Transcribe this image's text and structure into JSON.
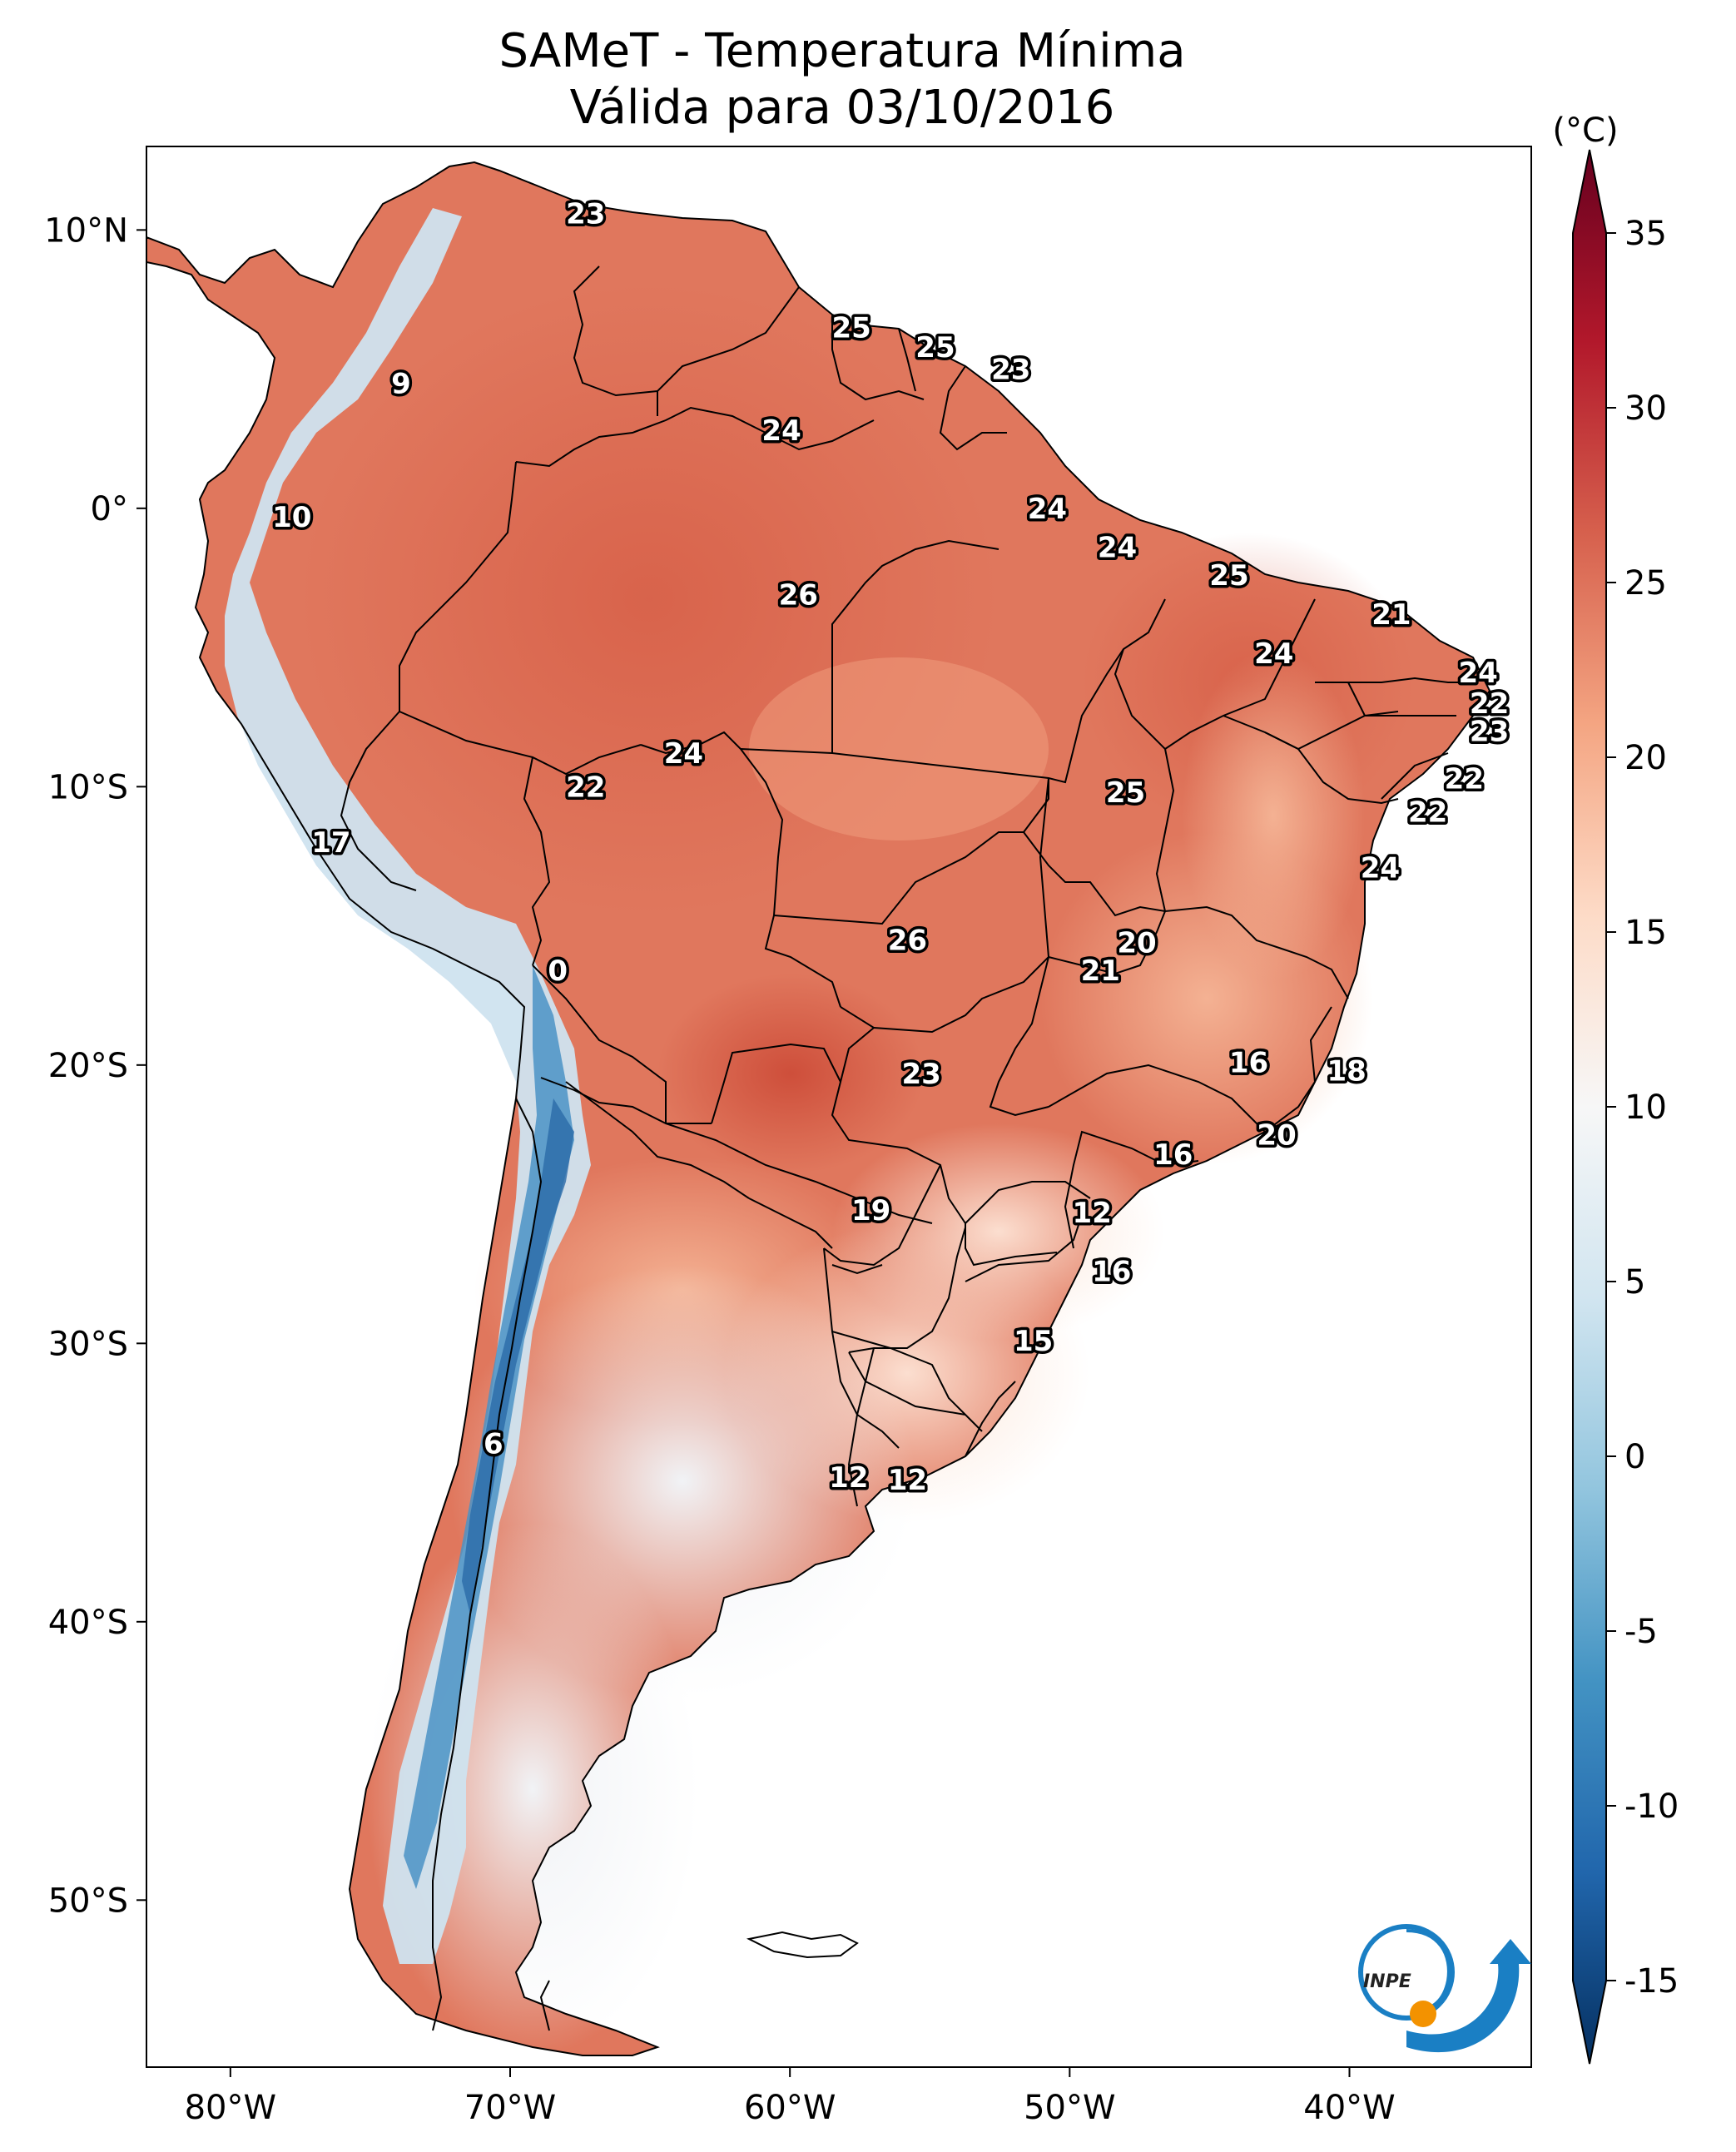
{
  "title": {
    "line1": "SAMeT - Temperatura Mínima",
    "line2": "Válida para 03/10/2016"
  },
  "colorbar": {
    "unit_label": "(°C)",
    "ticks": [
      "35",
      "30",
      "25",
      "20",
      "15",
      "10",
      "5",
      "0",
      "-5",
      "-10",
      "-15"
    ],
    "range": [
      -15,
      35
    ],
    "colors": {
      "warm_dark": "#67001f",
      "warm": "#b2182b",
      "warm_mid": "#d6604d",
      "warm_light": "#f4a582",
      "pale_warm": "#fddbc7",
      "neutral": "#f7f7f7",
      "pale_cool": "#d1e5f0",
      "cool_light": "#92c5de",
      "cool_mid": "#4393c3",
      "cool": "#2166ac",
      "cool_dark": "#053061"
    }
  },
  "axes": {
    "lat_labels": [
      "10°N",
      "0°",
      "10°S",
      "20°S",
      "30°S",
      "40°S",
      "50°S"
    ],
    "lon_labels": [
      "80°W",
      "70°W",
      "60°W",
      "50°W",
      "40°W"
    ],
    "lat_range": [
      -56,
      13
    ],
    "lon_range": [
      -83,
      -33.5
    ]
  },
  "annotations": [
    {
      "text": "23",
      "lon": -67.3,
      "lat": 10.6
    },
    {
      "text": "25",
      "lon": -57.8,
      "lat": 6.5
    },
    {
      "text": "25",
      "lon": -54.8,
      "lat": 5.8
    },
    {
      "text": "23",
      "lon": -52.1,
      "lat": 5.0
    },
    {
      "text": "9",
      "lon": -73.9,
      "lat": 4.5
    },
    {
      "text": "24",
      "lon": -60.3,
      "lat": 2.8
    },
    {
      "text": "24",
      "lon": -50.8,
      "lat": 0.0
    },
    {
      "text": "10",
      "lon": -77.8,
      "lat": -0.3
    },
    {
      "text": "24",
      "lon": -48.3,
      "lat": -1.4
    },
    {
      "text": "26",
      "lon": -59.7,
      "lat": -3.1
    },
    {
      "text": "25",
      "lon": -44.3,
      "lat": -2.4
    },
    {
      "text": "21",
      "lon": -38.5,
      "lat": -3.8
    },
    {
      "text": "24",
      "lon": -42.7,
      "lat": -5.2
    },
    {
      "text": "24",
      "lon": -35.4,
      "lat": -5.9
    },
    {
      "text": "22",
      "lon": -35.0,
      "lat": -7.0
    },
    {
      "text": "23",
      "lon": -35.0,
      "lat": -8.0
    },
    {
      "text": "24",
      "lon": -63.8,
      "lat": -8.8
    },
    {
      "text": "22",
      "lon": -67.3,
      "lat": -10.0
    },
    {
      "text": "22",
      "lon": -35.9,
      "lat": -9.7
    },
    {
      "text": "25",
      "lon": -48.0,
      "lat": -10.2
    },
    {
      "text": "22",
      "lon": -37.2,
      "lat": -10.9
    },
    {
      "text": "17",
      "lon": -76.4,
      "lat": -12.0
    },
    {
      "text": "24",
      "lon": -38.9,
      "lat": -12.9
    },
    {
      "text": "26",
      "lon": -55.8,
      "lat": -15.5
    },
    {
      "text": "20",
      "lon": -47.6,
      "lat": -15.6
    },
    {
      "text": "21",
      "lon": -48.9,
      "lat": -16.6
    },
    {
      "text": "0",
      "lon": -68.3,
      "lat": -16.6
    },
    {
      "text": "16",
      "lon": -43.6,
      "lat": -19.9
    },
    {
      "text": "23",
      "lon": -55.3,
      "lat": -20.3
    },
    {
      "text": "18",
      "lon": -40.1,
      "lat": -20.2
    },
    {
      "text": "20",
      "lon": -42.6,
      "lat": -22.5
    },
    {
      "text": "16",
      "lon": -46.3,
      "lat": -23.2
    },
    {
      "text": "19",
      "lon": -57.1,
      "lat": -25.2
    },
    {
      "text": "12",
      "lon": -49.2,
      "lat": -25.3
    },
    {
      "text": "16",
      "lon": -48.5,
      "lat": -27.4
    },
    {
      "text": "15",
      "lon": -51.3,
      "lat": -29.9
    },
    {
      "text": "6",
      "lon": -70.6,
      "lat": -33.6
    },
    {
      "text": "12",
      "lon": -57.9,
      "lat": -34.8
    },
    {
      "text": "12",
      "lon": -55.8,
      "lat": -34.9
    }
  ],
  "logo": {
    "text": "INPE",
    "colors": {
      "blue": "#1a7fc4",
      "orange": "#f39200"
    }
  }
}
